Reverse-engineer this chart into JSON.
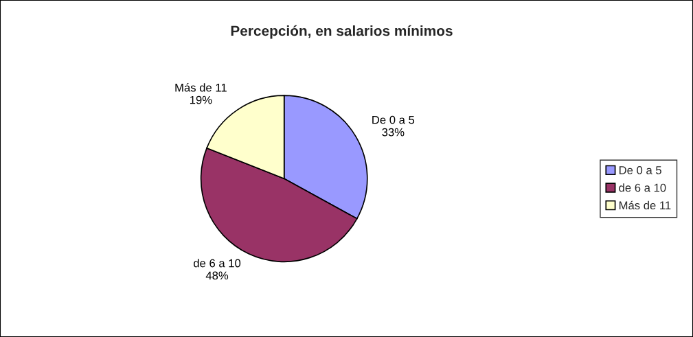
{
  "chart_data": {
    "type": "pie",
    "title": "Percepción, en salarios mínimos",
    "categories": [
      "De 0 a 5",
      "de 6 a 10",
      "Más de 11"
    ],
    "values": [
      33,
      48,
      19
    ],
    "value_labels": [
      "33%",
      "48%",
      "19%"
    ],
    "colors": [
      "#9999ff",
      "#993366",
      "#ffffcc"
    ],
    "legend": "right"
  }
}
